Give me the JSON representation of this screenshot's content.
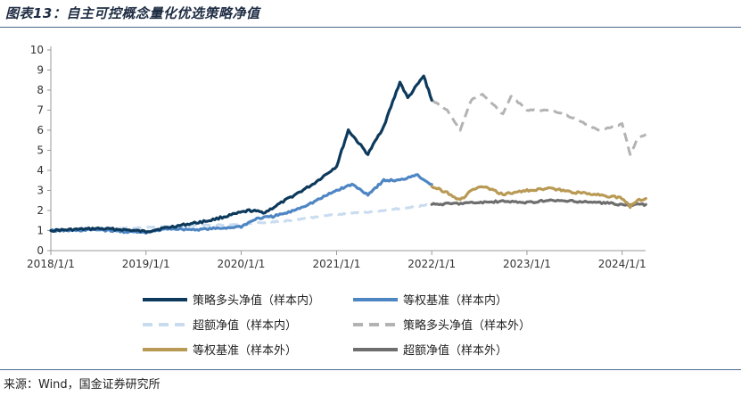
{
  "header": {
    "title": "图表13：自主可控概念量化优选策略净值"
  },
  "footer": {
    "source": "来源：Wind，国金证券研究所"
  },
  "chart_data": {
    "type": "line",
    "title": "图表13：自主可控概念量化优选策略净值",
    "xlabel": "",
    "ylabel": "",
    "x_ticks": [
      "2018/1/1",
      "2019/1/1",
      "2020/1/1",
      "2021/1/1",
      "2022/1/1",
      "2023/1/1",
      "2024/1/1"
    ],
    "y_ticks": [
      0,
      1,
      2,
      3,
      4,
      5,
      6,
      7,
      8,
      9,
      10
    ],
    "ylim": [
      0,
      10
    ],
    "grid": false,
    "legend_position": "bottom",
    "series": [
      {
        "name": "策略多头净值（样本内）",
        "color": "#0d3a5c",
        "style": "solid",
        "x": [
          "2018/1/1",
          "2018/4/1",
          "2018/7/1",
          "2018/10/1",
          "2019/1/1",
          "2019/3/1",
          "2019/6/1",
          "2019/9/1",
          "2019/12/1",
          "2020/2/1",
          "2020/4/1",
          "2020/7/1",
          "2020/10/1",
          "2021/1/1",
          "2021/2/15",
          "2021/5/1",
          "2021/7/1",
          "2021/9/1",
          "2021/10/1",
          "2021/12/1",
          "2022/1/1"
        ],
        "values": [
          1.0,
          1.05,
          1.1,
          1.05,
          0.95,
          1.1,
          1.3,
          1.5,
          1.8,
          2.0,
          1.9,
          2.6,
          3.3,
          4.2,
          6.0,
          4.8,
          6.2,
          8.4,
          7.6,
          8.7,
          7.5
        ]
      },
      {
        "name": "等权基准（样本内）",
        "color": "#4e86c4",
        "style": "solid",
        "x": [
          "2018/1/1",
          "2018/4/1",
          "2018/7/1",
          "2018/10/1",
          "2019/1/1",
          "2019/4/1",
          "2019/7/1",
          "2019/10/1",
          "2020/1/1",
          "2020/3/1",
          "2020/5/1",
          "2020/7/1",
          "2020/10/1",
          "2021/1/1",
          "2021/3/1",
          "2021/5/1",
          "2021/7/1",
          "2021/9/1",
          "2021/11/1",
          "2022/1/1"
        ],
        "values": [
          1.0,
          1.0,
          1.05,
          0.95,
          0.9,
          1.1,
          1.05,
          1.1,
          1.2,
          1.6,
          1.7,
          1.9,
          2.4,
          3.0,
          3.3,
          2.8,
          3.5,
          3.5,
          3.8,
          3.3
        ]
      },
      {
        "name": "超额净值（样本内）",
        "color": "#c9dcef",
        "style": "dashed",
        "x": [
          "2018/1/1",
          "2018/7/1",
          "2019/1/1",
          "2019/7/1",
          "2020/1/1",
          "2020/7/1",
          "2021/1/1",
          "2021/7/1",
          "2022/1/1"
        ],
        "values": [
          1.0,
          1.1,
          1.15,
          1.25,
          1.3,
          1.5,
          1.8,
          2.0,
          2.3
        ]
      },
      {
        "name": "策略多头净值（样本外）",
        "color": "#b3b3b3",
        "style": "dashed",
        "x": [
          "2022/1/1",
          "2022/3/1",
          "2022/4/20",
          "2022/6/1",
          "2022/7/15",
          "2022/10/1",
          "2022/11/1",
          "2023/1/1",
          "2023/4/1",
          "2023/7/1",
          "2023/10/1",
          "2024/1/1",
          "2024/2/1",
          "2024/3/1",
          "2024/4/1"
        ],
        "values": [
          7.5,
          7.0,
          6.0,
          7.5,
          7.8,
          6.8,
          7.7,
          7.0,
          7.0,
          6.6,
          6.0,
          6.3,
          4.8,
          5.6,
          5.8
        ]
      },
      {
        "name": "等权基准（样本外）",
        "color": "#b99a55",
        "style": "solid",
        "x": [
          "2022/1/1",
          "2022/3/1",
          "2022/4/20",
          "2022/6/1",
          "2022/7/15",
          "2022/10/1",
          "2023/1/1",
          "2023/4/1",
          "2023/7/1",
          "2023/10/1",
          "2024/1/1",
          "2024/2/1",
          "2024/3/1",
          "2024/4/1"
        ],
        "values": [
          3.2,
          2.9,
          2.5,
          3.0,
          3.2,
          2.8,
          3.0,
          3.1,
          2.9,
          2.8,
          2.6,
          2.2,
          2.5,
          2.6
        ]
      },
      {
        "name": "超额净值（样本外）",
        "color": "#6e6e6e",
        "style": "solid",
        "x": [
          "2022/1/1",
          "2022/4/1",
          "2022/7/1",
          "2022/10/1",
          "2023/1/1",
          "2023/4/1",
          "2023/7/1",
          "2023/10/1",
          "2024/1/1",
          "2024/2/1",
          "2024/3/1",
          "2024/4/1"
        ],
        "values": [
          2.3,
          2.35,
          2.4,
          2.45,
          2.4,
          2.5,
          2.45,
          2.4,
          2.3,
          2.25,
          2.3,
          2.3
        ]
      }
    ]
  }
}
